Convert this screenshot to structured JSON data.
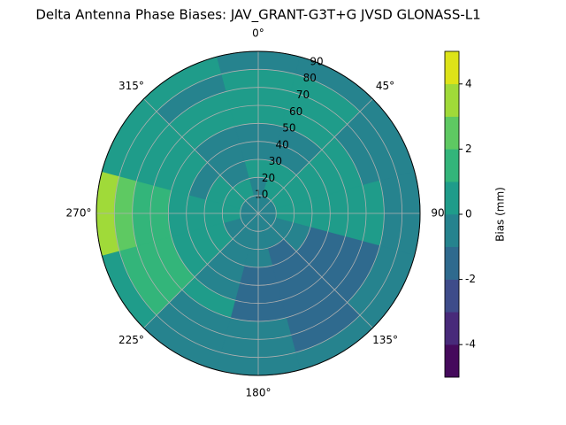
{
  "chart_data": {
    "type": "polar_contour",
    "title": "Delta Antenna Phase Biases: JAV_GRANT-G3T+G JVSD GLONASS-L1",
    "azimuths": [
      0,
      30,
      60,
      90,
      120,
      150,
      180,
      210,
      240,
      270,
      300,
      330
    ],
    "zeniths": [
      5,
      15,
      25,
      35,
      45,
      55,
      65,
      75,
      85
    ],
    "values": [
      [
        -0.5,
        -0.5,
        0.5,
        -0.5,
        -0.5,
        0.5,
        0.5,
        0.5,
        -0.5
      ],
      [
        -0.5,
        0.5,
        0.5,
        -0.5,
        -0.5,
        0.5,
        0.5,
        0.5,
        -0.5
      ],
      [
        -0.5,
        0.5,
        0.5,
        0.5,
        0.5,
        0.5,
        -0.5,
        -0.5,
        -0.5
      ],
      [
        -0.5,
        0.5,
        0.5,
        0.5,
        0.5,
        0.5,
        0.5,
        -0.5,
        -0.5
      ],
      [
        -0.5,
        -0.5,
        -0.5,
        -1.5,
        -1.5,
        -1.5,
        -1.5,
        -0.5,
        -0.5
      ],
      [
        -0.5,
        -0.5,
        -1.5,
        -1.5,
        -1.5,
        -1.5,
        -1.5,
        -1.5,
        -0.5
      ],
      [
        -0.5,
        -0.5,
        -0.5,
        -1.5,
        -1.5,
        -1.5,
        -0.5,
        -0.5,
        -0.5
      ],
      [
        -0.5,
        -0.5,
        -0.5,
        -0.5,
        -0.5,
        0.5,
        -0.5,
        -0.5,
        -0.5
      ],
      [
        -0.5,
        -0.5,
        0.5,
        0.5,
        0.5,
        1.5,
        1.5,
        1.5,
        0.5
      ],
      [
        -0.5,
        0.5,
        0.5,
        0.5,
        0.5,
        1.5,
        1.5,
        2.5,
        3.5
      ],
      [
        -0.5,
        0.5,
        0.5,
        -0.5,
        0.5,
        0.5,
        0.5,
        0.5,
        0.5
      ],
      [
        -0.5,
        0.5,
        -0.5,
        -0.5,
        -0.5,
        0.5,
        0.5,
        -0.5,
        0.5
      ]
    ],
    "rlim": [
      0,
      90
    ],
    "rticks": [
      10,
      20,
      30,
      40,
      50,
      60,
      70,
      80,
      90
    ],
    "thetaticks": [
      {
        "value": 0,
        "label": "0°"
      },
      {
        "value": 45,
        "label": "45°"
      },
      {
        "value": 90,
        "label": "90"
      },
      {
        "value": 135,
        "label": "135°"
      },
      {
        "value": 180,
        "label": "180°"
      },
      {
        "value": 225,
        "label": "225°"
      },
      {
        "value": 270,
        "label": "270°"
      },
      {
        "value": 315,
        "label": "315°"
      }
    ],
    "grid": true,
    "levels": [
      -5,
      -4,
      -3,
      -2,
      -1,
      0,
      1,
      2,
      3,
      4,
      5
    ],
    "colors": [
      "#450a5c",
      "#482a7a",
      "#3e4c8a",
      "#2f6a8e",
      "#26838e",
      "#1f9c8a",
      "#33b57a",
      "#5ec962",
      "#a0da39",
      "#dde318"
    ],
    "cticks": [
      -4,
      -2,
      0,
      2,
      4
    ],
    "clabel": "Bias (mm)"
  }
}
